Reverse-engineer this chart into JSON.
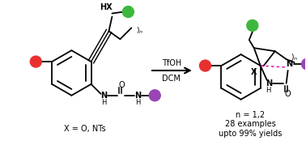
{
  "bg_color": "#ffffff",
  "black": "#000000",
  "red": "#e83030",
  "green": "#3db83d",
  "purple": "#9945b5",
  "pink": "#e81aaa",
  "reagent1": "TfOH",
  "reagent2": "DCM",
  "bottom_left": "X = O, NTs",
  "bottom_r1": "n = 1,2",
  "bottom_r2": "28 examples",
  "bottom_r3": "upto 99% yields"
}
